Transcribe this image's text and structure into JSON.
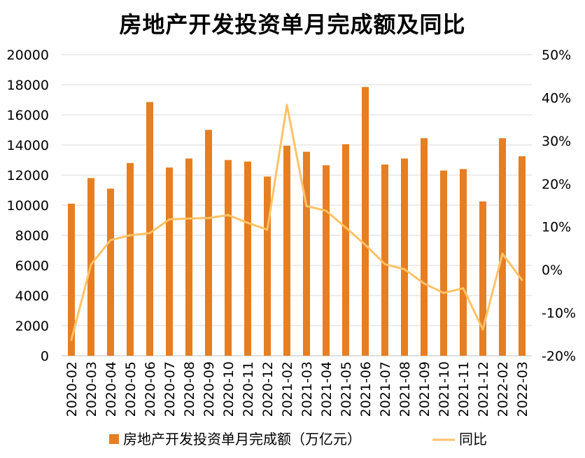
{
  "chart_data": {
    "type": "bar+line",
    "title": "房地产开发投资单月完成额及同比",
    "categories": [
      "2020-02",
      "2020-03",
      "2020-04",
      "2020-05",
      "2020-06",
      "2020-07",
      "2020-08",
      "2020-09",
      "2020-10",
      "2020-11",
      "2020-12",
      "2021-02",
      "2021-03",
      "2021-04",
      "2021-05",
      "2021-06",
      "2021-07",
      "2021-08",
      "2021-09",
      "2021-10",
      "2021-11",
      "2021-12",
      "2022-02",
      "2022-03"
    ],
    "series": [
      {
        "name": "房地产开发投资单月完成额（万亿元）",
        "type": "bar",
        "axis": "left",
        "color": "#E67E22",
        "values": [
          10100,
          11800,
          11100,
          12800,
          16850,
          12500,
          13100,
          15000,
          13000,
          12900,
          11900,
          13950,
          13550,
          12650,
          14050,
          17850,
          12700,
          13100,
          14450,
          12300,
          12400,
          10250,
          14450,
          13250
        ]
      },
      {
        "name": "同比",
        "type": "line",
        "axis": "right",
        "color": "#FFC266",
        "values": [
          -16.3,
          1.2,
          6.9,
          8.0,
          8.5,
          11.7,
          11.9,
          12.0,
          12.7,
          10.9,
          9.3,
          38.3,
          14.8,
          13.7,
          9.8,
          5.8,
          1.3,
          0.1,
          -3.2,
          -5.4,
          -4.3,
          -13.9,
          3.7,
          -2.4
        ]
      }
    ],
    "y_left": {
      "min": 0,
      "max": 20000,
      "ticks": [
        "0",
        "2000",
        "4000",
        "6000",
        "8000",
        "10000",
        "12000",
        "14000",
        "16000",
        "18000",
        "20000"
      ]
    },
    "y_right": {
      "min": -20,
      "max": 50,
      "ticks": [
        "-20%",
        "-10%",
        "0%",
        "10%",
        "20%",
        "30%",
        "40%",
        "50%"
      ]
    },
    "grid": true,
    "legend_position": "bottom"
  }
}
